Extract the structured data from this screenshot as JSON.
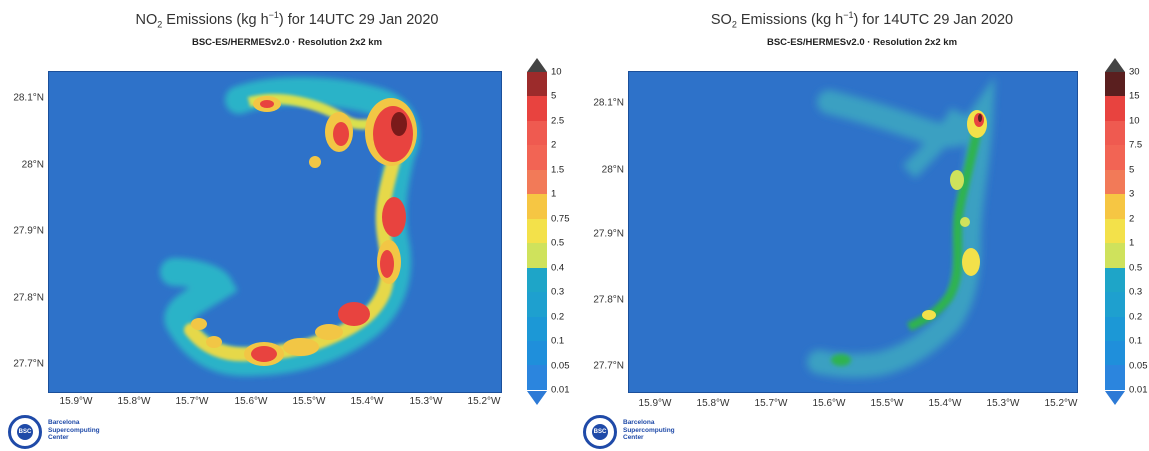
{
  "panels": [
    {
      "title_main": "NO",
      "title_sub": "2",
      "title_unit": " Emissions (kg h",
      "title_exp": "−1",
      "title_rest": ") for 14UTC 29 Jan 2020",
      "subtitle": "BSC-ES/HERMESv2.0 · Resolution 2x2 km",
      "y_ticks": [
        "28.1°N",
        "28°N",
        "27.9°N",
        "27.8°N",
        "27.7°N"
      ],
      "x_ticks": [
        "15.9°W",
        "15.8°W",
        "15.7°W",
        "15.6°W",
        "15.5°W",
        "15.4°W",
        "15.3°W",
        "15.2°W"
      ],
      "colorbar": {
        "ticks": [
          "10",
          "5",
          "2.5",
          "2",
          "1.5",
          "1",
          "0.75",
          "0.5",
          "0.4",
          "0.3",
          "0.2",
          "0.1",
          "0.05",
          "0.01"
        ],
        "colors": [
          "#9c2b2b",
          "#e8433f",
          "#ef5a50",
          "#f26454",
          "#f27a58",
          "#f6c643",
          "#f3e14a",
          "#cfe25c",
          "#1ea5c8",
          "#1ea0cf",
          "#1c98d6",
          "#1f8fdb",
          "#2b85de"
        ],
        "top_arrow_color": "#444444",
        "bottom_arrow_color": "#2d7ad6"
      }
    },
    {
      "title_main": "SO",
      "title_sub": "2",
      "title_unit": " Emissions (kg h",
      "title_exp": "−1",
      "title_rest": ") for 14UTC 29 Jan 2020",
      "subtitle": "BSC-ES/HERMESv2.0 · Resolution 2x2 km",
      "y_ticks": [
        "28.1°N",
        "28°N",
        "27.9°N",
        "27.8°N",
        "27.7°N"
      ],
      "x_ticks": [
        "15.9°W",
        "15.8°W",
        "15.7°W",
        "15.6°W",
        "15.5°W",
        "15.4°W",
        "15.3°W",
        "15.2°W"
      ],
      "colorbar": {
        "ticks": [
          "30",
          "15",
          "10",
          "7.5",
          "5",
          "3",
          "2",
          "1",
          "0.5",
          "0.3",
          "0.2",
          "0.1",
          "0.05",
          "0.01"
        ],
        "colors": [
          "#5a1f1f",
          "#e8433f",
          "#ef5a50",
          "#f26454",
          "#f27a58",
          "#f6c643",
          "#f3e14a",
          "#cfe25c",
          "#1ea5c8",
          "#1ea0cf",
          "#1c98d6",
          "#1f8fdb",
          "#2b85de"
        ],
        "top_arrow_color": "#444444",
        "bottom_arrow_color": "#2d7ad6"
      }
    }
  ],
  "logo": {
    "mark": "BSC",
    "line1": "Barcelona",
    "line2": "Supercomputing",
    "line3": "Center"
  }
}
